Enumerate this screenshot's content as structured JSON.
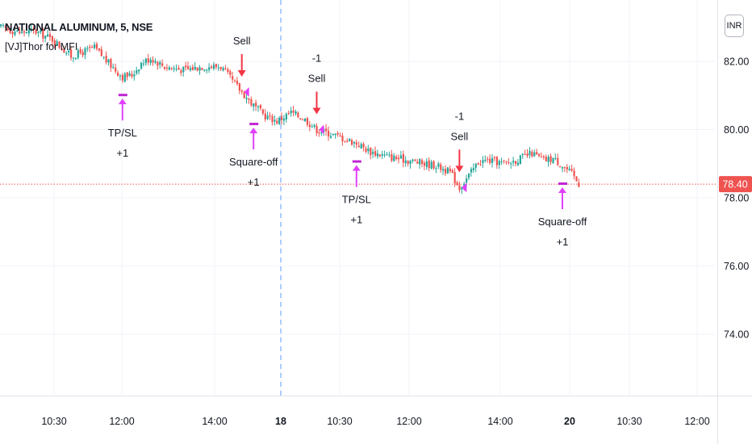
{
  "header": {
    "title": "NATIONAL ALUMINUM, 5, NSE",
    "indicator": "[VJ]Thor for MFI",
    "currency_button": "INR"
  },
  "colors": {
    "up": "#26a69a",
    "down": "#ef5350",
    "signal_arrow": "#f23645",
    "exit_arrow": "#e040fb",
    "exit_marker": "#c026d3",
    "grid": "#f0f3fa",
    "last_price_bg": "#ef5350"
  },
  "chart_data": {
    "type": "candlestick",
    "title": "NATIONAL ALUMINUM, 5, NSE",
    "y_axis": {
      "ticks": [
        "82.00",
        "80.00",
        "78.00",
        "76.00",
        "74.00"
      ],
      "range": [
        72.2,
        83.8
      ]
    },
    "x_axis": {
      "ticks": [
        "10:30",
        "12:00",
        "14:00",
        "18",
        "10:30",
        "12:00",
        "14:00",
        "20",
        "10:30",
        "12:00"
      ]
    },
    "session_break_label": "18",
    "last_price": "78.40",
    "price_path": [
      [
        0,
        83.0
      ],
      [
        8,
        82.85
      ],
      [
        14,
        82.9
      ],
      [
        22,
        82.65
      ],
      [
        30,
        82.15
      ],
      [
        40,
        82.4
      ],
      [
        46,
        81.95
      ],
      [
        52,
        81.55
      ],
      [
        56,
        81.6
      ],
      [
        60,
        81.95
      ],
      [
        64,
        82.1
      ],
      [
        70,
        81.85
      ],
      [
        78,
        81.75
      ],
      [
        86,
        81.85
      ],
      [
        94,
        81.85
      ],
      [
        98,
        81.5
      ],
      [
        103,
        81.1
      ],
      [
        108,
        80.7
      ],
      [
        113,
        80.4
      ],
      [
        118,
        80.25
      ],
      [
        124,
        80.5
      ],
      [
        130,
        80.3
      ],
      [
        135,
        80.0
      ],
      [
        140,
        79.9
      ],
      [
        146,
        79.75
      ],
      [
        152,
        79.6
      ],
      [
        158,
        79.35
      ],
      [
        166,
        79.2
      ],
      [
        174,
        79.1
      ],
      [
        181,
        79.0
      ],
      [
        186,
        78.95
      ],
      [
        192,
        78.75
      ],
      [
        196,
        78.3
      ],
      [
        200,
        78.65
      ],
      [
        204,
        79.05
      ],
      [
        208,
        79.1
      ],
      [
        216,
        79.0
      ],
      [
        222,
        79.15
      ],
      [
        227,
        79.3
      ],
      [
        232,
        79.1
      ],
      [
        236,
        79.15
      ],
      [
        240,
        78.95
      ],
      [
        244,
        78.7
      ],
      [
        247,
        78.4
      ]
    ],
    "signals": [
      {
        "type": "sell",
        "labels": [
          "Sell"
        ],
        "bar": 103
      },
      {
        "type": "sell",
        "labels": [
          "-1",
          "Sell"
        ],
        "bar": 135
      },
      {
        "type": "sell",
        "labels": [
          "-1",
          "Sell"
        ],
        "bar": 196
      },
      {
        "type": "exit",
        "labels": [
          "TP/SL",
          "+1"
        ],
        "bar": 52
      },
      {
        "type": "exit",
        "labels": [
          "Square-off",
          "+1"
        ],
        "bar": 108
      },
      {
        "type": "exit",
        "labels": [
          "TP/SL",
          "+1"
        ],
        "bar": 152
      },
      {
        "type": "exit",
        "labels": [
          "Square-off",
          "+1"
        ],
        "bar": 240
      }
    ]
  }
}
